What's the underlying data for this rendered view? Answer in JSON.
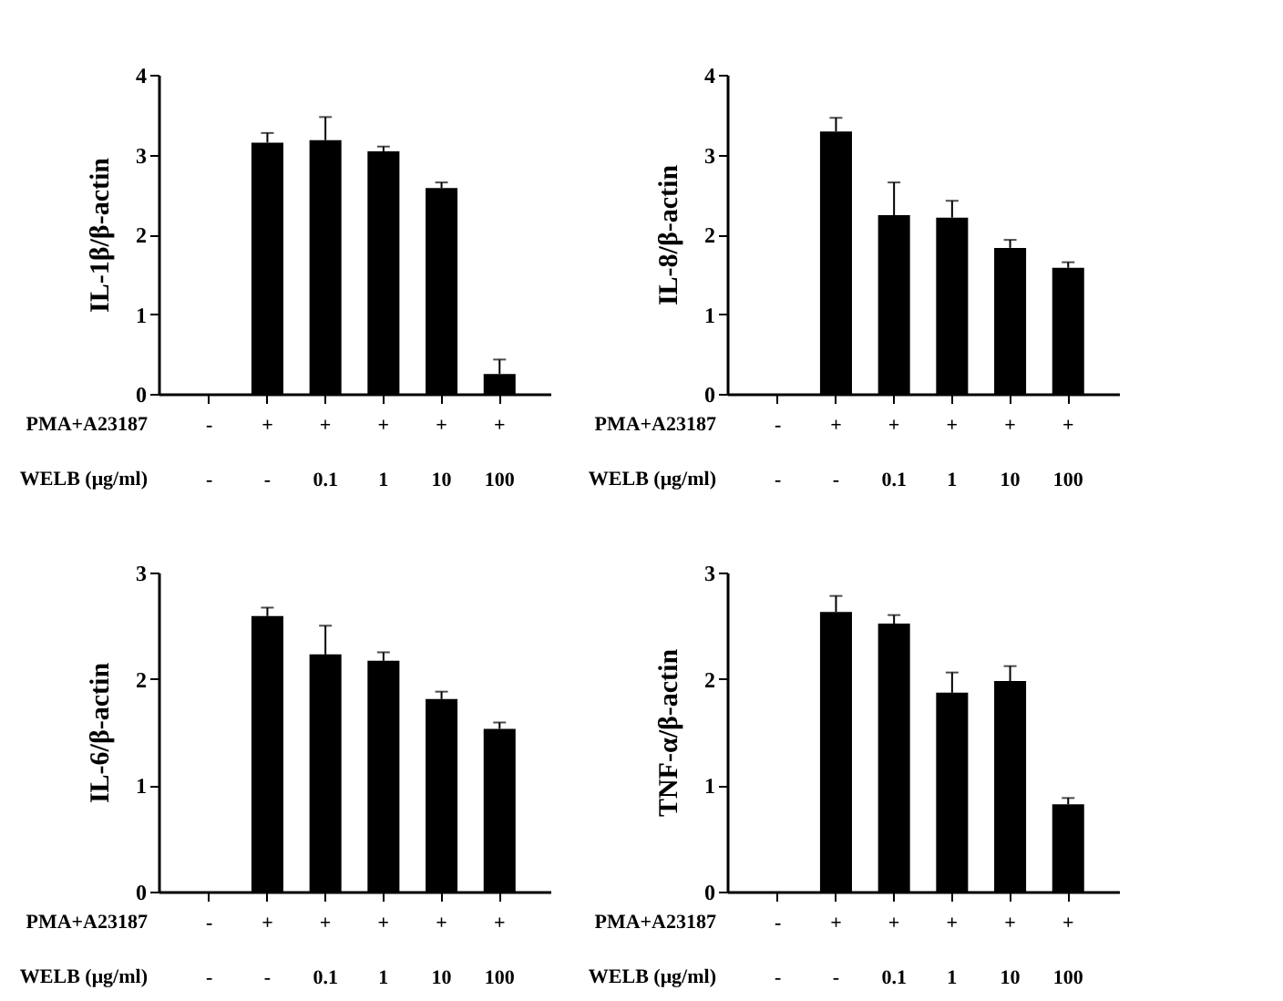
{
  "chart_data": [
    {
      "type": "bar",
      "ylabel": "IL-1β/β-actin",
      "categories": [
        "-\n-",
        "+\n-",
        "+\n0.1",
        "+\n1",
        "+\n10",
        "+\n100"
      ],
      "values": [
        0,
        3.15,
        3.18,
        3.04,
        2.58,
        0.25
      ],
      "errors": [
        null,
        [
          3.15,
          3.27
        ],
        [
          3.18,
          3.47
        ],
        [
          3.04,
          3.1
        ],
        [
          2.58,
          2.65
        ],
        [
          0.25,
          0.43
        ]
      ],
      "color": "#000000",
      "ylim": [
        0,
        4
      ],
      "yticks": [
        0,
        1,
        2,
        3,
        4
      ],
      "annotations": [
        "PMA+A23187",
        "WELB (μg/ml)"
      ]
    },
    {
      "type": "bar",
      "ylabel": "IL-8/β-actin",
      "categories": [
        "-\n-",
        "+\n-",
        "+\n0.1",
        "+\n1",
        "+\n10",
        "+\n100"
      ],
      "values": [
        0,
        3.29,
        2.24,
        2.21,
        1.83,
        1.58
      ],
      "errors": [
        null,
        [
          3.29,
          3.46
        ],
        [
          2.24,
          2.65
        ],
        [
          2.21,
          2.42
        ],
        [
          1.83,
          1.93
        ],
        [
          1.58,
          1.65
        ]
      ],
      "color": "#000000",
      "ylim": [
        0,
        4
      ],
      "yticks": [
        0,
        1,
        2,
        3,
        4
      ],
      "annotations": [
        "PMA+A23187",
        "WELB (μg/ml)"
      ]
    },
    {
      "type": "bar",
      "ylabel": "IL-6/β-actin",
      "categories": [
        "-\n-",
        "+\n-",
        "+\n0.1",
        "+\n1",
        "+\n10",
        "+\n100"
      ],
      "values": [
        0,
        2.59,
        2.23,
        2.17,
        1.81,
        1.53
      ],
      "errors": [
        null,
        [
          2.59,
          2.67
        ],
        [
          2.23,
          2.5
        ],
        [
          2.17,
          2.25
        ],
        [
          1.81,
          1.88
        ],
        [
          1.53,
          1.59
        ]
      ],
      "color": "#000000",
      "ylim": [
        0,
        3
      ],
      "yticks": [
        0,
        1,
        2,
        3
      ],
      "annotations": [
        "PMA+A23187",
        "WELB (μg/ml)"
      ]
    },
    {
      "type": "bar",
      "ylabel": "TNF-α/β-actin",
      "categories": [
        "-\n-",
        "+\n-",
        "+\n0.1",
        "+\n1",
        "+\n10",
        "+\n100"
      ],
      "values": [
        0,
        2.63,
        2.52,
        1.87,
        1.98,
        0.82
      ],
      "errors": [
        null,
        [
          2.63,
          2.78
        ],
        [
          2.52,
          2.6
        ],
        [
          1.87,
          2.06
        ],
        [
          1.98,
          2.12
        ],
        [
          0.82,
          0.88
        ]
      ],
      "color": "#000000",
      "ylim": [
        0,
        3
      ],
      "yticks": [
        0,
        1,
        2,
        3
      ],
      "annotations": [
        "PMA+A23187",
        "WELB (μg/ml)"
      ]
    }
  ]
}
